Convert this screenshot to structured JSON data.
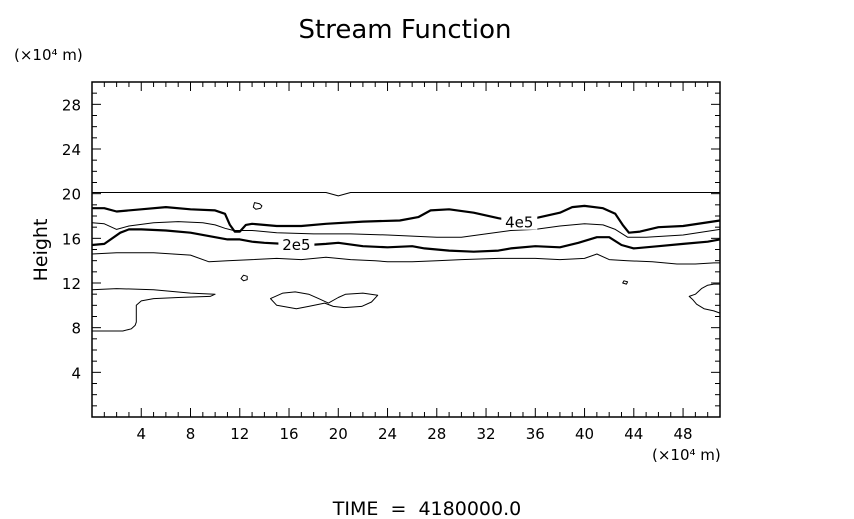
{
  "chart_data": {
    "type": "contour",
    "title": "Stream Function",
    "ylabel": "Height",
    "y_unit_label": "(×10⁴ m)",
    "x_unit_label": "(×10⁴ m)",
    "footer": "TIME  =  4180000.0",
    "xlim": [
      0,
      51
    ],
    "ylim": [
      0,
      30
    ],
    "x_ticks": [
      4,
      8,
      12,
      16,
      20,
      24,
      28,
      32,
      36,
      40,
      44,
      48
    ],
    "y_ticks": [
      4,
      8,
      12,
      16,
      20,
      24,
      28
    ],
    "contour_labels": [
      {
        "text": "4e5",
        "x": 34.7,
        "y": 17.4
      },
      {
        "text": "2e5",
        "x": 16.6,
        "y": 15.4
      }
    ],
    "contours": [
      {
        "name": "c1",
        "weight": "thin",
        "points": [
          [
            0,
            20.1
          ],
          [
            19,
            20.1
          ],
          [
            20,
            19.8
          ],
          [
            21,
            20.1
          ],
          [
            51,
            20.1
          ]
        ]
      },
      {
        "name": "c2",
        "weight": "thick",
        "points": [
          [
            0,
            18.7
          ],
          [
            1,
            18.7
          ],
          [
            2,
            18.4
          ],
          [
            4,
            18.6
          ],
          [
            6,
            18.8
          ],
          [
            8,
            18.6
          ],
          [
            10,
            18.5
          ],
          [
            10.8,
            18.2
          ],
          [
            11.2,
            17.2
          ],
          [
            11.6,
            16.6
          ],
          [
            12,
            16.6
          ],
          [
            12.5,
            17.2
          ],
          [
            13,
            17.3
          ],
          [
            15,
            17.1
          ],
          [
            17,
            17.1
          ],
          [
            19,
            17.3
          ],
          [
            22,
            17.5
          ],
          [
            25,
            17.6
          ],
          [
            26.5,
            17.9
          ],
          [
            27.5,
            18.5
          ],
          [
            29,
            18.6
          ],
          [
            31,
            18.3
          ],
          [
            33,
            17.8
          ],
          [
            34,
            17.6
          ],
          [
            36,
            17.8
          ],
          [
            38,
            18.3
          ],
          [
            39,
            18.8
          ],
          [
            40,
            18.9
          ],
          [
            41.5,
            18.7
          ],
          [
            42.5,
            18.2
          ],
          [
            43.1,
            17.2
          ],
          [
            43.6,
            16.5
          ],
          [
            44.5,
            16.6
          ],
          [
            46,
            17
          ],
          [
            48,
            17.1
          ],
          [
            51,
            17.6
          ]
        ]
      },
      {
        "name": "c3",
        "weight": "thin",
        "points": [
          [
            0,
            17.4
          ],
          [
            1,
            17.3
          ],
          [
            2,
            16.8
          ],
          [
            3,
            17.1
          ],
          [
            5,
            17.4
          ],
          [
            7,
            17.5
          ],
          [
            9,
            17.4
          ],
          [
            10,
            17.2
          ],
          [
            10.8,
            16.9
          ],
          [
            11.5,
            16.7
          ],
          [
            13,
            16.7
          ],
          [
            15,
            16.5
          ],
          [
            18,
            16.4
          ],
          [
            21,
            16.4
          ],
          [
            24,
            16.3
          ],
          [
            26,
            16.2
          ],
          [
            28,
            16.1
          ],
          [
            30,
            16.1
          ],
          [
            32,
            16.4
          ],
          [
            34,
            16.7
          ],
          [
            36,
            16.8
          ],
          [
            38,
            17.1
          ],
          [
            40,
            17.3
          ],
          [
            41.5,
            17.2
          ],
          [
            42.5,
            16.8
          ],
          [
            43.5,
            16.1
          ],
          [
            45,
            16.1
          ],
          [
            48,
            16.3
          ],
          [
            51,
            16.8
          ]
        ]
      },
      {
        "name": "c4",
        "weight": "thick",
        "points": [
          [
            0,
            15.4
          ],
          [
            1,
            15.5
          ],
          [
            2.3,
            16.5
          ],
          [
            3,
            16.8
          ],
          [
            4,
            16.8
          ],
          [
            6,
            16.7
          ],
          [
            8,
            16.5
          ],
          [
            10,
            16.1
          ],
          [
            11,
            15.9
          ],
          [
            12,
            15.9
          ],
          [
            13,
            15.7
          ],
          [
            14,
            15.6
          ],
          [
            15.6,
            15.5
          ],
          [
            17.6,
            15.4
          ],
          [
            19,
            15.5
          ],
          [
            20,
            15.6
          ],
          [
            22,
            15.3
          ],
          [
            24,
            15.2
          ],
          [
            26,
            15.3
          ],
          [
            27,
            15.1
          ],
          [
            29,
            14.9
          ],
          [
            31,
            14.8
          ],
          [
            33,
            14.9
          ],
          [
            34,
            15.1
          ],
          [
            36,
            15.3
          ],
          [
            38,
            15.2
          ],
          [
            39.5,
            15.6
          ],
          [
            41,
            16.1
          ],
          [
            42,
            16.1
          ],
          [
            43,
            15.4
          ],
          [
            44,
            15.1
          ],
          [
            46,
            15.3
          ],
          [
            48,
            15.5
          ],
          [
            50,
            15.7
          ],
          [
            51,
            15.9
          ]
        ]
      },
      {
        "name": "c5",
        "weight": "thin",
        "points": [
          [
            0,
            14.6
          ],
          [
            2,
            14.7
          ],
          [
            5,
            14.7
          ],
          [
            8,
            14.5
          ],
          [
            9.5,
            13.9
          ],
          [
            11,
            14
          ],
          [
            13,
            14.1
          ],
          [
            15,
            14.2
          ],
          [
            17,
            14.1
          ],
          [
            19,
            14.3
          ],
          [
            21,
            14.1
          ],
          [
            23,
            14
          ],
          [
            24,
            13.9
          ],
          [
            26,
            13.9
          ],
          [
            28,
            14
          ],
          [
            30,
            14.1
          ],
          [
            33,
            14.2
          ],
          [
            36,
            14.2
          ],
          [
            38,
            14.1
          ],
          [
            40,
            14.2
          ],
          [
            41,
            14.6
          ],
          [
            42,
            14.1
          ],
          [
            43.5,
            14
          ],
          [
            45.5,
            13.9
          ],
          [
            47.5,
            13.7
          ],
          [
            49,
            13.7
          ],
          [
            50.5,
            13.8
          ],
          [
            51,
            13.8
          ]
        ]
      },
      {
        "name": "c6",
        "weight": "thin",
        "points": [
          [
            0,
            11.4
          ],
          [
            2,
            11.5
          ],
          [
            5,
            11.4
          ],
          [
            8,
            11.1
          ],
          [
            10,
            11
          ],
          [
            9.6,
            10.8
          ],
          [
            7,
            10.7
          ],
          [
            5,
            10.6
          ],
          [
            4,
            10.4
          ],
          [
            3.6,
            10
          ],
          [
            3.6,
            8.9
          ],
          [
            3.6,
            8.5
          ],
          [
            3.5,
            8.2
          ],
          [
            3.2,
            7.9
          ],
          [
            2.5,
            7.7
          ],
          [
            1.5,
            7.7
          ],
          [
            0,
            7.7
          ]
        ]
      },
      {
        "name": "c7",
        "weight": "thin",
        "points": [
          [
            51,
            11.9
          ],
          [
            50.5,
            11.9
          ],
          [
            50,
            11.8
          ],
          [
            49.5,
            11.5
          ],
          [
            49,
            11
          ],
          [
            48.5,
            10.8
          ],
          [
            48.8,
            10.5
          ],
          [
            49.1,
            10.1
          ],
          [
            49.7,
            9.7
          ],
          [
            50.5,
            9.5
          ],
          [
            51,
            9.3
          ]
        ]
      },
      {
        "name": "c8",
        "weight": "thin",
        "closed": true,
        "points": [
          [
            14.5,
            10.6
          ],
          [
            15.5,
            11.1
          ],
          [
            16.5,
            11.2
          ],
          [
            17.6,
            11
          ],
          [
            18.4,
            10.6
          ],
          [
            19.2,
            10.2
          ],
          [
            20,
            10.7
          ],
          [
            20.6,
            11
          ],
          [
            22,
            11.1
          ],
          [
            23.2,
            10.9
          ],
          [
            22.7,
            10.3
          ],
          [
            21.9,
            9.9
          ],
          [
            20.5,
            9.8
          ],
          [
            19.6,
            9.9
          ],
          [
            18.9,
            10.2
          ],
          [
            17.6,
            9.9
          ],
          [
            16.6,
            9.7
          ],
          [
            15,
            10
          ]
        ]
      },
      {
        "name": "c9",
        "weight": "thin",
        "closed": true,
        "points": [
          [
            13.2,
            19.2
          ],
          [
            13.6,
            19.1
          ],
          [
            13.8,
            18.9
          ],
          [
            13.7,
            18.7
          ],
          [
            13.3,
            18.6
          ],
          [
            13.1,
            18.8
          ]
        ]
      },
      {
        "name": "c10",
        "weight": "thin",
        "closed": true,
        "points": [
          [
            12.3,
            12.7
          ],
          [
            12.6,
            12.6
          ],
          [
            12.6,
            12.3
          ],
          [
            12.3,
            12.2
          ],
          [
            12.1,
            12.4
          ]
        ]
      },
      {
        "name": "c11",
        "weight": "thin",
        "closed": true,
        "points": [
          [
            43.2,
            12.2
          ],
          [
            43.5,
            12.1
          ],
          [
            43.4,
            11.9
          ],
          [
            43.1,
            12
          ]
        ]
      }
    ]
  }
}
